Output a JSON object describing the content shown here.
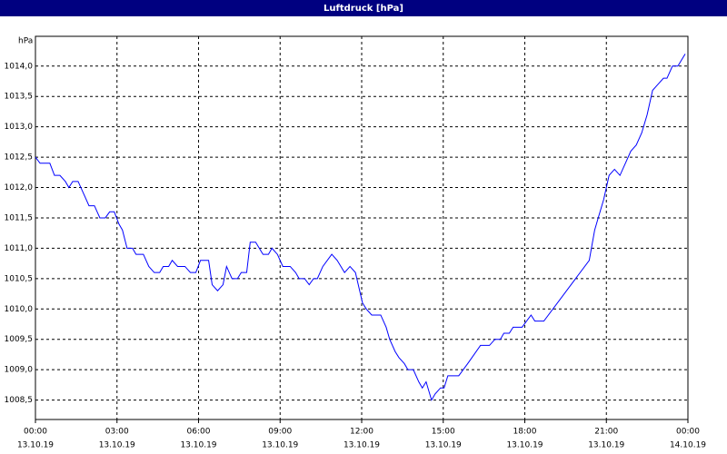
{
  "chart_data": {
    "type": "line",
    "title": "Luftdruck [hPa]",
    "y_unit": "hPa",
    "xlim": [
      0,
      24
    ],
    "xticks": [
      {
        "value": 0,
        "label": "00:00",
        "date": "13.10.19"
      },
      {
        "value": 3,
        "label": "03:00",
        "date": "13.10.19"
      },
      {
        "value": 6,
        "label": "06:00",
        "date": "13.10.19"
      },
      {
        "value": 9,
        "label": "09:00",
        "date": "13.10.19"
      },
      {
        "value": 12,
        "label": "12:00",
        "date": "13.10.19"
      },
      {
        "value": 15,
        "label": "15:00",
        "date": "13.10.19"
      },
      {
        "value": 18,
        "label": "18:00",
        "date": "13.10.19"
      },
      {
        "value": 21,
        "label": "21:00",
        "date": "13.10.19"
      },
      {
        "value": 24,
        "label": "00:00",
        "date": "14.10.19"
      }
    ],
    "ylim": [
      1008.18,
      1014.49
    ],
    "yticks": [
      {
        "value": 1008.5,
        "label": "1008,5"
      },
      {
        "value": 1009.0,
        "label": "1009,0"
      },
      {
        "value": 1009.5,
        "label": "1009,5"
      },
      {
        "value": 1010.0,
        "label": "1010,0"
      },
      {
        "value": 1010.5,
        "label": "1010,5"
      },
      {
        "value": 1011.0,
        "label": "1011,0"
      },
      {
        "value": 1011.5,
        "label": "1011,5"
      },
      {
        "value": 1012.0,
        "label": "1012,0"
      },
      {
        "value": 1012.5,
        "label": "1012,5"
      },
      {
        "value": 1013.0,
        "label": "1013,0"
      },
      {
        "value": 1013.5,
        "label": "1013,5"
      },
      {
        "value": 1014.0,
        "label": "1014,0"
      }
    ],
    "grid": true,
    "x": [
      0,
      0.17,
      0.53,
      0.7,
      0.9,
      1.1,
      1.23,
      1.37,
      1.57,
      1.77,
      1.97,
      2.17,
      2.37,
      2.57,
      2.73,
      2.9,
      3.07,
      3.2,
      3.37,
      3.57,
      3.7,
      3.97,
      4.17,
      4.37,
      4.57,
      4.7,
      4.9,
      5.03,
      5.23,
      5.5,
      5.7,
      5.9,
      6.07,
      6.37,
      6.5,
      6.7,
      6.9,
      7.03,
      7.23,
      7.43,
      7.57,
      7.77,
      7.9,
      8.1,
      8.37,
      8.57,
      8.7,
      8.9,
      9.1,
      9.37,
      9.57,
      9.7,
      9.9,
      10.07,
      10.23,
      10.37,
      10.57,
      10.9,
      11.1,
      11.37,
      11.57,
      11.77,
      12.03,
      12.17,
      12.37,
      12.7,
      12.9,
      13.03,
      13.23,
      13.37,
      13.57,
      13.7,
      13.9,
      14.1,
      14.23,
      14.37,
      14.57,
      14.7,
      14.9,
      15.03,
      15.17,
      15.57,
      15.9,
      16.37,
      16.7,
      16.9,
      17.1,
      17.23,
      17.43,
      17.57,
      17.9,
      18.23,
      18.37,
      18.7,
      20.37,
      20.57,
      20.7,
      20.9,
      21.1,
      21.3,
      21.5,
      21.7,
      21.9,
      22.1,
      22.3,
      22.5,
      22.7,
      22.9,
      23.1,
      23.23,
      23.43,
      23.63,
      23.9
    ],
    "series": [
      {
        "color": "#0000ff",
        "values": [
          1012.5,
          1012.4,
          1012.4,
          1012.2,
          1012.2,
          1012.1,
          1012.0,
          1012.1,
          1012.1,
          1011.9,
          1011.7,
          1011.7,
          1011.5,
          1011.5,
          1011.6,
          1011.6,
          1011.4,
          1011.3,
          1011.0,
          1011.0,
          1010.9,
          1010.9,
          1010.7,
          1010.6,
          1010.6,
          1010.7,
          1010.7,
          1010.8,
          1010.7,
          1010.7,
          1010.6,
          1010.6,
          1010.8,
          1010.8,
          1010.4,
          1010.3,
          1010.4,
          1010.7,
          1010.5,
          1010.5,
          1010.6,
          1010.6,
          1011.1,
          1011.1,
          1010.9,
          1010.9,
          1011.0,
          1010.9,
          1010.7,
          1010.7,
          1010.6,
          1010.5,
          1010.5,
          1010.4,
          1010.5,
          1010.5,
          1010.7,
          1010.9,
          1010.8,
          1010.6,
          1010.7,
          1010.6,
          1010.1,
          1010.0,
          1009.9,
          1009.9,
          1009.7,
          1009.5,
          1009.3,
          1009.2,
          1009.1,
          1009.0,
          1009.0,
          1008.8,
          1008.7,
          1008.8,
          1008.5,
          1008.6,
          1008.7,
          1008.7,
          1008.9,
          1008.9,
          1009.1,
          1009.4,
          1009.4,
          1009.5,
          1009.5,
          1009.6,
          1009.6,
          1009.7,
          1009.7,
          1009.9,
          1009.8,
          1009.8,
          1010.8,
          1011.3,
          1011.5,
          1011.8,
          1012.2,
          1012.3,
          1012.2,
          1012.4,
          1012.6,
          1012.7,
          1012.9,
          1013.2,
          1013.6,
          1013.7,
          1013.8,
          1013.8,
          1014.0,
          1014.0,
          1014.2
        ]
      }
    ]
  }
}
